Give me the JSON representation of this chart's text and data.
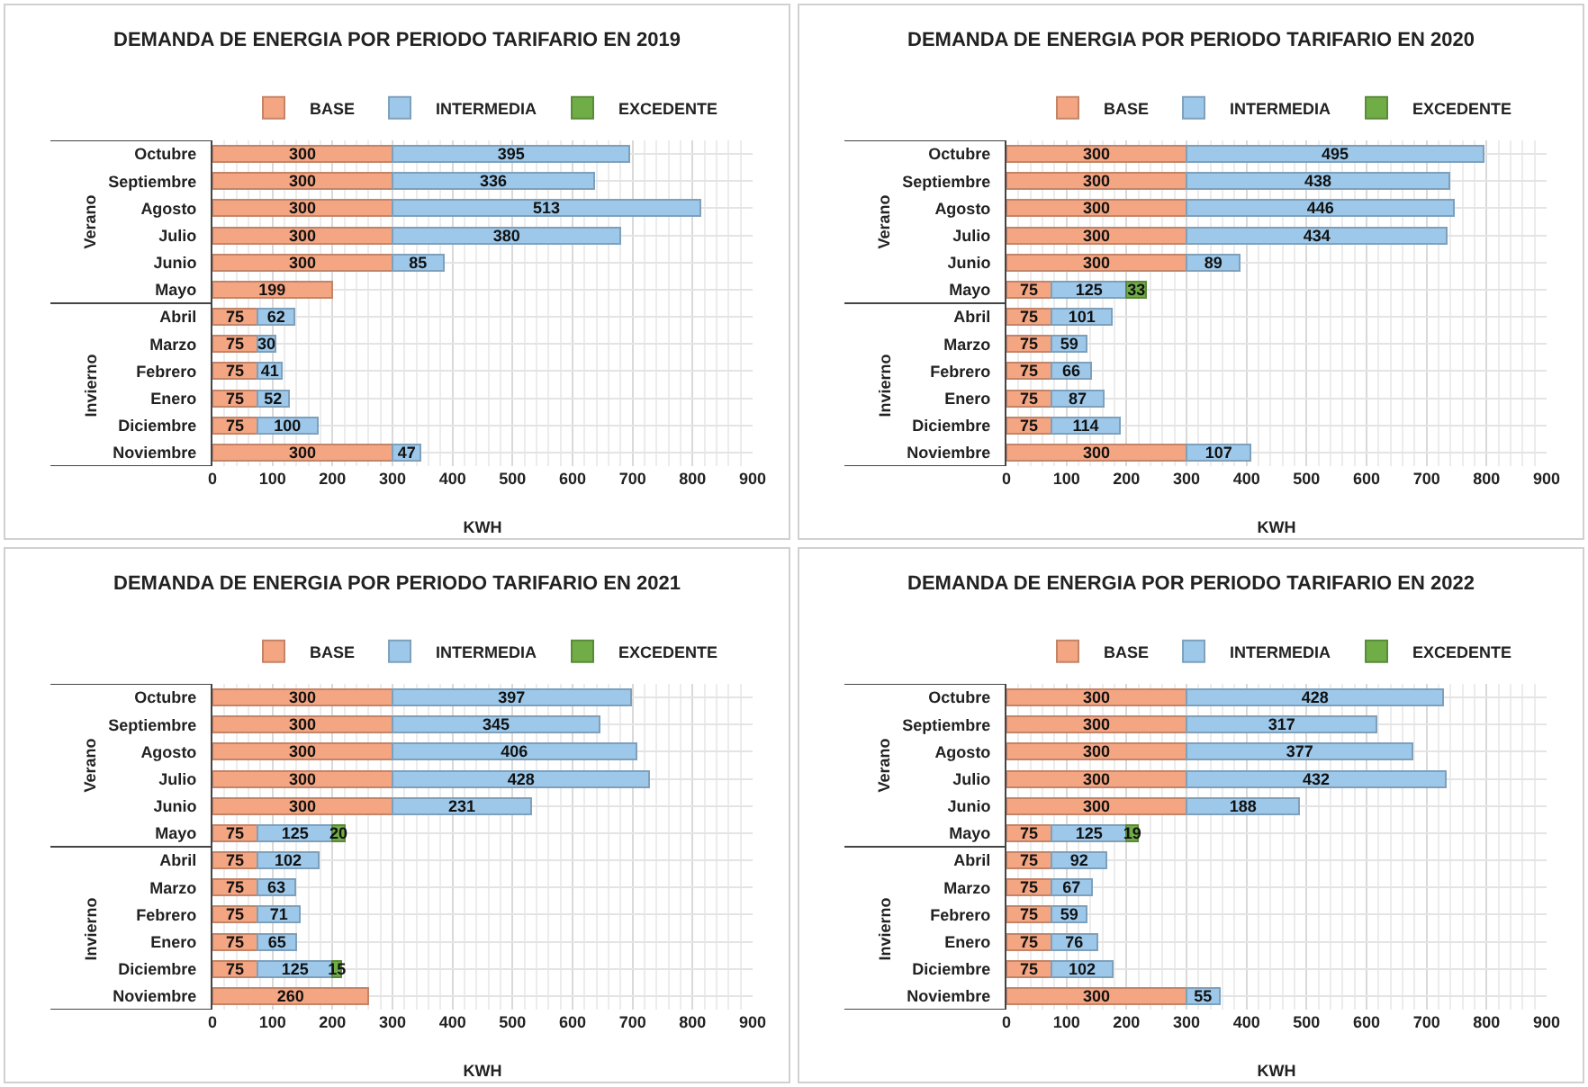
{
  "chart_data": [
    {
      "type": "bar",
      "orientation": "horizontal",
      "stacked": true,
      "title": "DEMANDA DE ENERGIA POR PERIODO TARIFARIO EN 2019",
      "xlabel": "KWH",
      "categories": [
        "Octubre",
        "Septiembre",
        "Agosto",
        "Julio",
        "Junio",
        "Mayo",
        "Abril",
        "Marzo",
        "Febrero",
        "Enero",
        "Diciembre",
        "Noviembre"
      ],
      "series": [
        {
          "name": "BASE",
          "color": "#f4a582",
          "values": [
            300,
            300,
            300,
            300,
            300,
            199,
            75,
            75,
            75,
            75,
            75,
            300
          ]
        },
        {
          "name": "INTERMEDIA",
          "color": "#9dc8ea",
          "values": [
            395,
            336,
            513,
            380,
            85,
            null,
            62,
            30,
            41,
            52,
            100,
            47
          ]
        },
        {
          "name": "EXCEDENTE",
          "color": "#70ad47",
          "values": [
            null,
            null,
            null,
            null,
            null,
            null,
            null,
            null,
            null,
            null,
            null,
            null
          ]
        }
      ],
      "xlim": [
        0,
        900
      ],
      "xticks": [
        0,
        100,
        200,
        300,
        400,
        500,
        600,
        700,
        800,
        900
      ],
      "grid": true,
      "legend": "top",
      "data_labels": true,
      "annotations": [
        "Verano",
        "Invierno"
      ]
    },
    {
      "type": "bar",
      "orientation": "horizontal",
      "stacked": true,
      "title": "DEMANDA DE ENERGIA POR PERIODO TARIFARIO EN 2020",
      "xlabel": "KWH",
      "categories": [
        "Octubre",
        "Septiembre",
        "Agosto",
        "Julio",
        "Junio",
        "Mayo",
        "Abril",
        "Marzo",
        "Febrero",
        "Enero",
        "Diciembre",
        "Noviembre"
      ],
      "series": [
        {
          "name": "BASE",
          "color": "#f4a582",
          "values": [
            300,
            300,
            300,
            300,
            300,
            75,
            75,
            75,
            75,
            75,
            75,
            300
          ]
        },
        {
          "name": "INTERMEDIA",
          "color": "#9dc8ea",
          "values": [
            495,
            438,
            446,
            434,
            89,
            125,
            101,
            59,
            66,
            87,
            114,
            107
          ]
        },
        {
          "name": "EXCEDENTE",
          "color": "#70ad47",
          "values": [
            null,
            null,
            null,
            null,
            null,
            33,
            null,
            null,
            null,
            null,
            null,
            null
          ]
        }
      ],
      "xlim": [
        0,
        900
      ],
      "xticks": [
        0,
        100,
        200,
        300,
        400,
        500,
        600,
        700,
        800,
        900
      ],
      "grid": true,
      "legend": "top",
      "data_labels": true,
      "annotations": [
        "Verano",
        "Invierno"
      ]
    },
    {
      "type": "bar",
      "orientation": "horizontal",
      "stacked": true,
      "title": "DEMANDA DE ENERGIA POR PERIODO TARIFARIO EN 2021",
      "xlabel": "KWH",
      "categories": [
        "Octubre",
        "Septiembre",
        "Agosto",
        "Julio",
        "Junio",
        "Mayo",
        "Abril",
        "Marzo",
        "Febrero",
        "Enero",
        "Diciembre",
        "Noviembre"
      ],
      "series": [
        {
          "name": "BASE",
          "color": "#f4a582",
          "values": [
            300,
            300,
            300,
            300,
            300,
            75,
            75,
            75,
            75,
            75,
            75,
            260
          ]
        },
        {
          "name": "INTERMEDIA",
          "color": "#9dc8ea",
          "values": [
            397,
            345,
            406,
            428,
            231,
            125,
            102,
            63,
            71,
            65,
            125,
            null
          ]
        },
        {
          "name": "EXCEDENTE",
          "color": "#70ad47",
          "values": [
            null,
            null,
            null,
            null,
            null,
            20,
            null,
            null,
            null,
            null,
            15,
            null
          ]
        }
      ],
      "xlim": [
        0,
        900
      ],
      "xticks": [
        0,
        100,
        200,
        300,
        400,
        500,
        600,
        700,
        800,
        900
      ],
      "grid": true,
      "legend": "top",
      "data_labels": true,
      "annotations": [
        "Verano",
        "Invierno"
      ]
    },
    {
      "type": "bar",
      "orientation": "horizontal",
      "stacked": true,
      "title": "DEMANDA DE ENERGIA POR PERIODO TARIFARIO EN 2022",
      "xlabel": "KWH",
      "categories": [
        "Octubre",
        "Septiembre",
        "Agosto",
        "Julio",
        "Junio",
        "Mayo",
        "Abril",
        "Marzo",
        "Febrero",
        "Enero",
        "Diciembre",
        "Noviembre"
      ],
      "series": [
        {
          "name": "BASE",
          "color": "#f4a582",
          "values": [
            300,
            300,
            300,
            300,
            300,
            75,
            75,
            75,
            75,
            75,
            75,
            300
          ]
        },
        {
          "name": "INTERMEDIA",
          "color": "#9dc8ea",
          "values": [
            428,
            317,
            377,
            432,
            188,
            125,
            92,
            67,
            59,
            76,
            102,
            55
          ]
        },
        {
          "name": "EXCEDENTE",
          "color": "#70ad47",
          "values": [
            null,
            null,
            null,
            null,
            null,
            19,
            null,
            null,
            null,
            null,
            null,
            null
          ]
        }
      ],
      "xlim": [
        0,
        900
      ],
      "xticks": [
        0,
        100,
        200,
        300,
        400,
        500,
        600,
        700,
        800,
        900
      ],
      "grid": true,
      "legend": "top",
      "data_labels": true,
      "annotations": [
        "Verano",
        "Invierno"
      ]
    }
  ]
}
